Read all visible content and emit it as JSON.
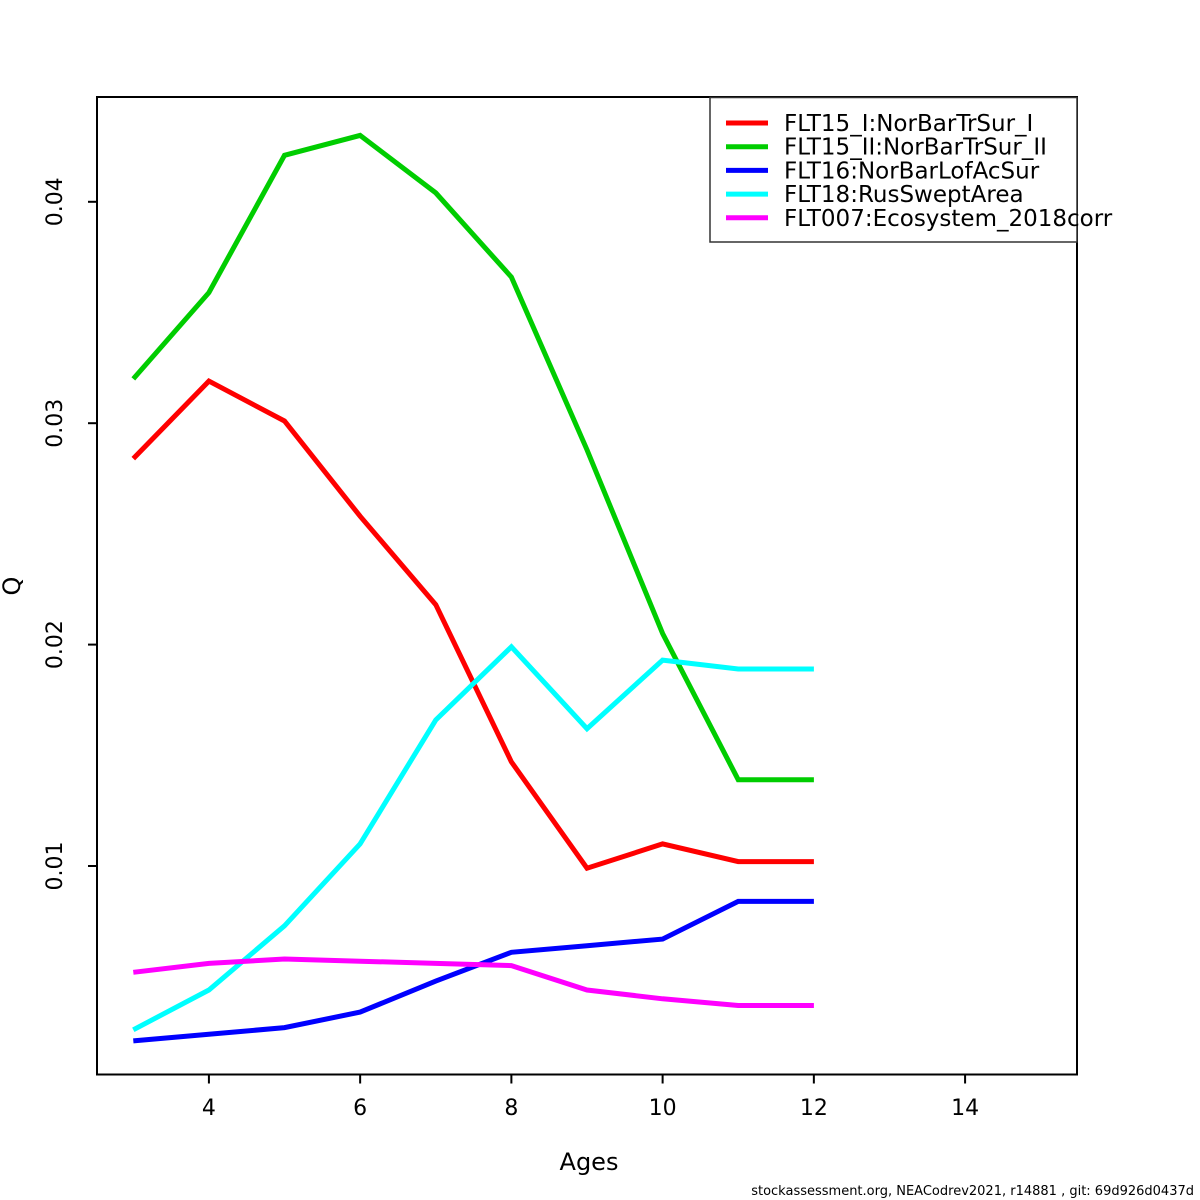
{
  "chart_data": {
    "type": "line",
    "title": "",
    "xlabel": "Ages",
    "ylabel": "Q",
    "x_ticks": [
      4,
      6,
      8,
      10,
      12,
      14
    ],
    "y_ticks": [
      0.01,
      0.02,
      0.03,
      0.04
    ],
    "xlim": [
      2.52,
      15.48
    ],
    "ylim": [
      0.0006,
      0.0447
    ],
    "grid": false,
    "legend_position": "top-right",
    "ages": [
      3,
      4,
      5,
      6,
      7,
      8,
      9,
      10,
      11,
      12
    ],
    "series": [
      {
        "name": "FLT15_I:NorBarTrSur_I",
        "color": "#FF0000",
        "values": [
          0.0284,
          0.0319,
          0.0301,
          0.0258,
          0.0218,
          0.0147,
          0.0099,
          0.011,
          0.0102,
          0.0102
        ]
      },
      {
        "name": "FLT15_II:NorBarTrSur_II",
        "color": "#00CD00",
        "values": [
          0.032,
          0.0359,
          0.0421,
          0.043,
          0.0404,
          0.0366,
          0.0288,
          0.0205,
          0.0139,
          0.0139
        ]
      },
      {
        "name": "FLT16:NorBarLofAcSur",
        "color": "#0000FF",
        "values": [
          0.0021,
          0.0024,
          0.0027,
          0.0034,
          0.0048,
          0.0061,
          0.0064,
          0.0067,
          0.0084,
          0.0084
        ]
      },
      {
        "name": "FLT18:RusSweptArea",
        "color": "#00FFFF",
        "values": [
          0.0026,
          0.0044,
          0.0073,
          0.011,
          0.0166,
          0.0199,
          0.0162,
          0.0193,
          0.0189,
          0.0189
        ]
      },
      {
        "name": "FLT007:Ecosystem_2018corr",
        "color": "#FF00FF",
        "values": [
          0.0052,
          0.0056,
          0.0058,
          0.0057,
          0.0056,
          0.0055,
          0.0044,
          0.004,
          0.0037,
          0.0037
        ]
      }
    ]
  },
  "footer": {
    "text": "stockassessment.org, NEACodrev2021, r14881 , git: 69d926d0437d"
  }
}
